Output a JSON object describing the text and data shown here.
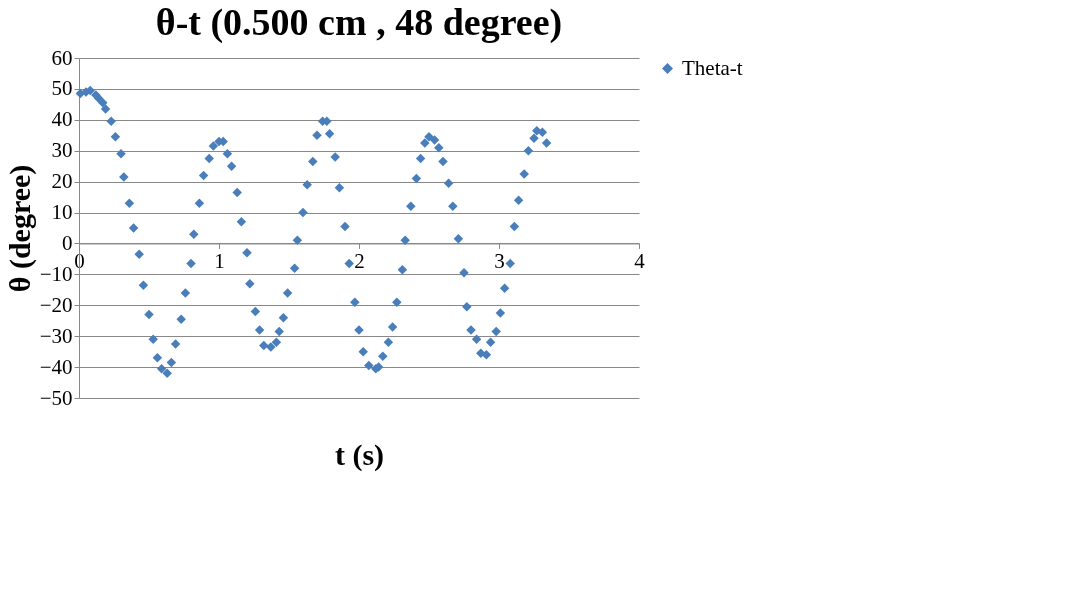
{
  "chart_data": {
    "type": "scatter",
    "title": "θ-t (0.500 cm , 48 degree)",
    "xlabel": "t (s)",
    "ylabel": "θ (degree)",
    "x": [
      0.01,
      0.05,
      0.08,
      0.12,
      0.14,
      0.17,
      0.19,
      0.23,
      0.26,
      0.3,
      0.32,
      0.36,
      0.39,
      0.43,
      0.46,
      0.5,
      0.53,
      0.56,
      0.59,
      0.63,
      0.66,
      0.69,
      0.73,
      0.76,
      0.8,
      0.82,
      0.86,
      0.89,
      0.93,
      0.96,
      1.0,
      1.03,
      1.06,
      1.09,
      1.13,
      1.16,
      1.2,
      1.22,
      1.26,
      1.29,
      1.32,
      1.37,
      1.41,
      1.43,
      1.46,
      1.49,
      1.54,
      1.56,
      1.6,
      1.63,
      1.67,
      1.7,
      1.74,
      1.77,
      1.79,
      1.83,
      1.86,
      1.9,
      1.93,
      1.97,
      2.0,
      2.03,
      2.07,
      2.12,
      2.14,
      2.17,
      2.21,
      2.24,
      2.27,
      2.31,
      2.33,
      2.37,
      2.41,
      2.44,
      2.47,
      2.5,
      2.54,
      2.57,
      2.6,
      2.64,
      2.67,
      2.71,
      2.75,
      2.77,
      2.8,
      2.84,
      2.87,
      2.91,
      2.94,
      2.98,
      3.01,
      3.04,
      3.08,
      3.11,
      3.14,
      3.18,
      3.21,
      3.25,
      3.27,
      3.31,
      3.34
    ],
    "series": [
      {
        "name": "Theta-t",
        "color": "#4a7ebb",
        "values": [
          48.5,
          49,
          49.5,
          48,
          47,
          45.5,
          43.5,
          39.5,
          34.5,
          29,
          21.5,
          13,
          5,
          -3.5,
          -13.5,
          -23,
          -31,
          -37,
          -40.5,
          -42,
          -38.5,
          -32.5,
          -24.5,
          -16,
          -6.5,
          3,
          13,
          22,
          27.5,
          31.5,
          33,
          33,
          29,
          25,
          16.5,
          7,
          -3,
          -13,
          -22,
          -28,
          -33,
          -33.5,
          -32,
          -28.5,
          -24,
          -16,
          -8,
          1,
          10,
          19,
          26.5,
          35,
          39.5,
          39.5,
          35.5,
          28,
          18,
          5.5,
          -6.5,
          -19,
          -28,
          -35,
          -39.5,
          -40.5,
          -40,
          -36.5,
          -32,
          -27,
          -19,
          -8.5,
          1,
          12,
          21,
          27.5,
          32.5,
          34.5,
          33.5,
          31,
          26.5,
          19.5,
          12,
          1.5,
          -9.5,
          -20.5,
          -28,
          -31,
          -35.5,
          -36,
          -32,
          -28.5,
          -22.5,
          -14.5,
          -6.5,
          5.5,
          14,
          22.5,
          30,
          34,
          36.5,
          36,
          32.5
        ]
      }
    ],
    "xlim": [
      0,
      4
    ],
    "xticks": [
      0,
      1,
      2,
      3,
      4
    ],
    "ylim": [
      -50,
      60
    ],
    "yticks": [
      -50,
      -40,
      -30,
      -20,
      -10,
      0,
      10,
      20,
      30,
      40,
      50,
      60
    ],
    "grid": "y",
    "legend": "right",
    "marker": "diamond"
  }
}
